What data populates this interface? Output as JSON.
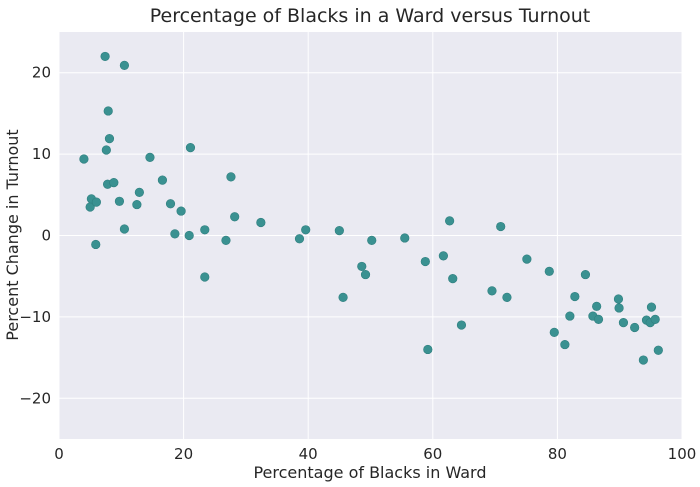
{
  "chart_data": {
    "type": "scatter",
    "title": "Percentage of Blacks in a Ward versus Turnout",
    "xlabel": "Percentage of Blacks in Ward",
    "ylabel": "Percent Change in Turnout",
    "xlim": [
      0,
      100
    ],
    "ylim": [
      -25,
      25
    ],
    "xticks": [
      0,
      20,
      40,
      60,
      80,
      100
    ],
    "yticks": [
      -20,
      -10,
      0,
      10,
      20
    ],
    "grid": true,
    "legend": false,
    "colors": {
      "background": "#eaeaf2",
      "point": "#3a9191",
      "grid": "#ffffff"
    },
    "points": [
      [
        4.0,
        9.4
      ],
      [
        5.0,
        3.5
      ],
      [
        5.2,
        4.5
      ],
      [
        6.0,
        4.1
      ],
      [
        5.9,
        -1.1
      ],
      [
        7.4,
        22.0
      ],
      [
        7.6,
        10.5
      ],
      [
        7.8,
        6.3
      ],
      [
        7.9,
        15.3
      ],
      [
        8.1,
        11.9
      ],
      [
        8.8,
        6.5
      ],
      [
        9.7,
        4.2
      ],
      [
        10.5,
        0.8
      ],
      [
        10.5,
        20.9
      ],
      [
        12.5,
        3.8
      ],
      [
        12.9,
        5.3
      ],
      [
        14.6,
        9.6
      ],
      [
        16.6,
        6.8
      ],
      [
        17.9,
        3.9
      ],
      [
        18.6,
        0.2
      ],
      [
        19.6,
        3.0
      ],
      [
        20.9,
        0.0
      ],
      [
        21.1,
        10.8
      ],
      [
        23.4,
        0.7
      ],
      [
        23.4,
        -5.1
      ],
      [
        26.8,
        -0.6
      ],
      [
        27.6,
        7.2
      ],
      [
        28.2,
        2.3
      ],
      [
        32.4,
        1.6
      ],
      [
        38.6,
        -0.4
      ],
      [
        39.6,
        0.7
      ],
      [
        45.0,
        0.6
      ],
      [
        45.6,
        -7.6
      ],
      [
        48.6,
        -3.8
      ],
      [
        49.2,
        -4.8
      ],
      [
        50.2,
        -0.6
      ],
      [
        55.5,
        -0.3
      ],
      [
        58.8,
        -3.2
      ],
      [
        59.2,
        -14.0
      ],
      [
        61.7,
        -2.5
      ],
      [
        62.7,
        1.8
      ],
      [
        63.2,
        -5.3
      ],
      [
        64.6,
        -11.0
      ],
      [
        69.5,
        -6.8
      ],
      [
        70.9,
        1.1
      ],
      [
        71.9,
        -7.6
      ],
      [
        75.1,
        -2.9
      ],
      [
        78.7,
        -4.4
      ],
      [
        79.5,
        -11.9
      ],
      [
        81.2,
        -13.4
      ],
      [
        82.0,
        -9.9
      ],
      [
        82.8,
        -7.5
      ],
      [
        84.5,
        -4.8
      ],
      [
        85.7,
        -9.9
      ],
      [
        86.3,
        -8.7
      ],
      [
        86.6,
        -10.3
      ],
      [
        89.8,
        -7.8
      ],
      [
        89.9,
        -8.9
      ],
      [
        90.6,
        -10.7
      ],
      [
        92.4,
        -11.3
      ],
      [
        93.8,
        -15.3
      ],
      [
        94.3,
        -10.4
      ],
      [
        94.9,
        -10.7
      ],
      [
        95.1,
        -8.8
      ],
      [
        95.7,
        -10.3
      ],
      [
        96.2,
        -14.1
      ]
    ]
  }
}
